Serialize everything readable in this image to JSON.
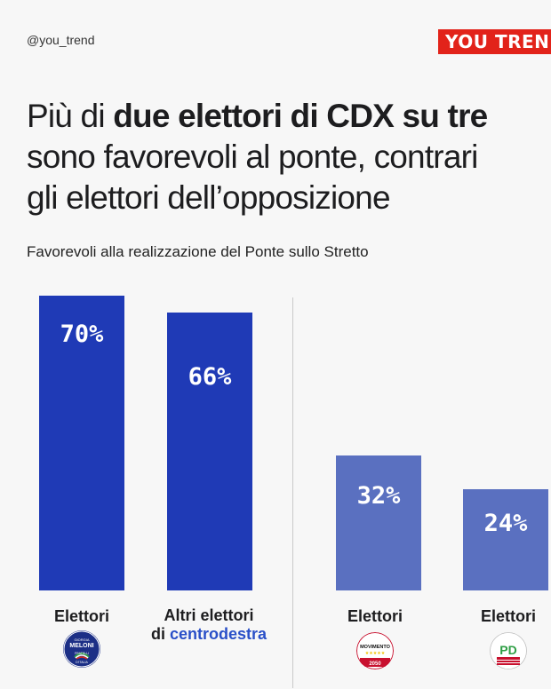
{
  "header": {
    "handle": "@you_trend",
    "brand": "YOU TREND"
  },
  "title": {
    "part1": "Più di ",
    "bold": "due elettori di CDX su tre",
    "line2": "sono favorevoli al ponte, contrari",
    "line3": "gli elettori dell’opposizione"
  },
  "chart_data": {
    "type": "bar",
    "title": "Più di due elettori di CDX su tre sono favorevoli al ponte, contrari gli elettori dell’opposizione",
    "subtitle": "Favorevoli alla realizzazione del Ponte sullo Stretto",
    "categories": [
      "Elettori (FdI)",
      "Altri elettori di centrodestra",
      "Elettori (M5S)",
      "Elettori (PD)"
    ],
    "values": [
      70,
      66,
      32,
      24
    ],
    "value_labels": [
      "70%",
      "66%",
      "32%",
      "24%"
    ],
    "ylim": [
      0,
      70
    ],
    "colors": [
      "#1f3ab6",
      "#1f3ab6",
      "#5a70c0",
      "#5a70c0"
    ],
    "grid": false
  },
  "labels": {
    "cat1": "Elettori",
    "cat2_line1": "Altri elettori",
    "cat2_prefix": "di ",
    "cat2_highlight": "centrodestra",
    "cat3": "Elettori",
    "cat4": "Elettori"
  },
  "logos": {
    "fdi": {
      "icon": "fdi-logo",
      "line1": "GIORGIA",
      "line2": "MELONI",
      "line3": "FRATELLI",
      "line4": "D'ITALIA"
    },
    "m5s": {
      "icon": "m5s-logo",
      "line1": "MOVIMENTO",
      "line2": "2050"
    },
    "pd": {
      "icon": "pd-logo",
      "line1": "PD"
    }
  }
}
